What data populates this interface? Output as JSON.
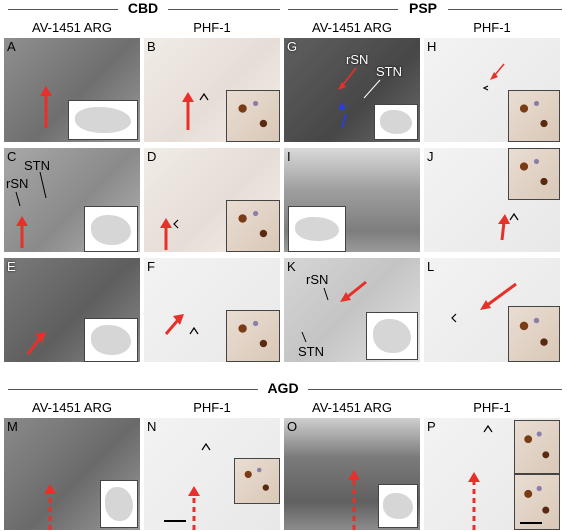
{
  "sections": {
    "cbd": "CBD",
    "psp": "PSP",
    "agd": "AGD"
  },
  "columns": {
    "arg": "AV-1451 ARG",
    "phf": "PHF-1"
  },
  "panels": [
    "A",
    "B",
    "C",
    "D",
    "E",
    "F",
    "G",
    "H",
    "I",
    "J",
    "K",
    "L",
    "M",
    "N",
    "O",
    "P"
  ],
  "annotations": {
    "rsn": "rSN",
    "stn": "STN"
  },
  "colors": {
    "arrow_red": "#e8302a",
    "arrow_blue": "#2b3fd6",
    "background": "#ffffff"
  }
}
